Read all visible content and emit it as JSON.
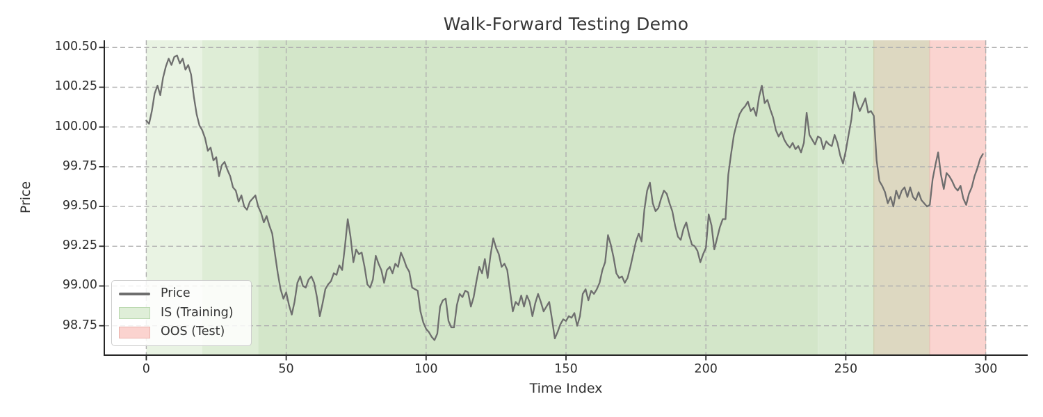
{
  "figure": {
    "title": "Walk-Forward Testing Demo",
    "xlabel": "Time Index",
    "ylabel": "Price"
  },
  "legend": {
    "items": [
      {
        "label": "Price",
        "swatch": "line",
        "color": "#6e6e6e"
      },
      {
        "label": "IS (Training)",
        "swatch": "fill",
        "color": "#dfeed8",
        "border": "#b9d8ae"
      },
      {
        "label": "OOS (Test)",
        "swatch": "fill",
        "color": "#fbd3cf",
        "border": "#eab3ad"
      }
    ]
  },
  "chart_data": {
    "type": "line",
    "title": "Walk-Forward Testing Demo",
    "xlabel": "Time Index",
    "ylabel": "Price",
    "xlim": [
      -15,
      315
    ],
    "ylim": [
      98.565,
      100.545
    ],
    "x_ticks": [
      0,
      50,
      100,
      150,
      200,
      250,
      300
    ],
    "y_ticks": [
      100.5,
      100.25,
      100.0,
      99.75,
      99.5,
      99.25,
      99.0,
      98.75
    ],
    "grid": true,
    "grid_style": "dashed",
    "legend_position": "lower left",
    "colors": {
      "line": "#6e6e6e",
      "grid": "#b0b0b0",
      "spine": "#262626",
      "text": "#2e2e2e"
    },
    "regions": [
      {
        "name": "is-training-1x",
        "x0": 0,
        "x1": 20,
        "color": "#e9f3e3"
      },
      {
        "name": "is-training-2x",
        "x0": 20,
        "x1": 40,
        "color": "#deedd6"
      },
      {
        "name": "is-training-3x",
        "x0": 40,
        "x1": 240,
        "color": "#d3e6c9"
      },
      {
        "name": "is-training-2x-tail",
        "x0": 240,
        "x1": 260,
        "color": "#d9ead1"
      },
      {
        "name": "is-oos-overlap",
        "x0": 260,
        "x1": 280,
        "color": "#ddd8c1",
        "edge_left": "#c2bd95"
      },
      {
        "name": "oos-test",
        "x0": 280,
        "x1": 300,
        "color": "#fad4d0",
        "edge_left": "#e8a9a3",
        "edge_right": "#e8a9a3"
      }
    ],
    "series": [
      {
        "name": "Price",
        "color": "#6e6e6e",
        "x_start": 0,
        "x_step": 1,
        "values": [
          100.04,
          100.02,
          100.1,
          100.21,
          100.26,
          100.2,
          100.31,
          100.38,
          100.43,
          100.39,
          100.44,
          100.45,
          100.4,
          100.43,
          100.36,
          100.39,
          100.33,
          100.19,
          100.08,
          100.01,
          99.98,
          99.93,
          99.85,
          99.87,
          99.79,
          99.81,
          99.69,
          99.76,
          99.78,
          99.73,
          99.69,
          99.62,
          99.6,
          99.53,
          99.57,
          99.5,
          99.48,
          99.53,
          99.55,
          99.57,
          99.5,
          99.46,
          99.4,
          99.44,
          99.38,
          99.33,
          99.2,
          99.08,
          98.98,
          98.92,
          98.96,
          98.88,
          98.82,
          98.9,
          99.02,
          99.06,
          99.0,
          98.99,
          99.04,
          99.06,
          99.02,
          98.93,
          98.81,
          98.89,
          98.98,
          99.01,
          99.03,
          99.08,
          99.07,
          99.13,
          99.1,
          99.25,
          99.42,
          99.31,
          99.15,
          99.23,
          99.2,
          99.21,
          99.12,
          99.01,
          98.99,
          99.04,
          99.19,
          99.14,
          99.1,
          99.02,
          99.1,
          99.12,
          99.08,
          99.14,
          99.12,
          99.21,
          99.17,
          99.12,
          99.09,
          98.99,
          98.98,
          98.97,
          98.84,
          98.77,
          98.73,
          98.71,
          98.68,
          98.66,
          98.7,
          98.87,
          98.91,
          98.92,
          98.78,
          98.74,
          98.74,
          98.88,
          98.95,
          98.93,
          98.97,
          98.96,
          98.87,
          98.93,
          99.03,
          99.12,
          99.08,
          99.17,
          99.05,
          99.19,
          99.3,
          99.24,
          99.2,
          99.12,
          99.14,
          99.1,
          98.97,
          98.84,
          98.9,
          98.88,
          98.94,
          98.87,
          98.94,
          98.9,
          98.81,
          98.89,
          98.95,
          98.9,
          98.84,
          98.87,
          98.9,
          98.79,
          98.67,
          98.71,
          98.76,
          98.79,
          98.78,
          98.81,
          98.8,
          98.83,
          98.75,
          98.81,
          98.95,
          98.98,
          98.91,
          98.97,
          98.95,
          98.98,
          99.02,
          99.1,
          99.15,
          99.32,
          99.26,
          99.18,
          99.08,
          99.05,
          99.06,
          99.02,
          99.05,
          99.12,
          99.2,
          99.28,
          99.33,
          99.28,
          99.48,
          99.6,
          99.65,
          99.52,
          99.47,
          99.49,
          99.55,
          99.6,
          99.58,
          99.52,
          99.47,
          99.38,
          99.31,
          99.29,
          99.36,
          99.4,
          99.32,
          99.26,
          99.25,
          99.22,
          99.15,
          99.2,
          99.24,
          99.45,
          99.38,
          99.23,
          99.3,
          99.37,
          99.42,
          99.42,
          99.7,
          99.83,
          99.95,
          100.02,
          100.08,
          100.11,
          100.13,
          100.16,
          100.1,
          100.12,
          100.07,
          100.19,
          100.26,
          100.15,
          100.17,
          100.11,
          100.06,
          99.98,
          99.94,
          99.97,
          99.92,
          99.89,
          99.87,
          99.9,
          99.86,
          99.88,
          99.84,
          99.9,
          100.09,
          99.95,
          99.92,
          99.89,
          99.94,
          99.93,
          99.86,
          99.91,
          99.89,
          99.88,
          99.95,
          99.9,
          99.82,
          99.77,
          99.85,
          99.95,
          100.05,
          100.22,
          100.15,
          100.1,
          100.14,
          100.18,
          100.09,
          100.1,
          100.07,
          99.79,
          99.66,
          99.63,
          99.59,
          99.52,
          99.56,
          99.5,
          99.6,
          99.55,
          99.6,
          99.62,
          99.56,
          99.62,
          99.56,
          99.54,
          99.59,
          99.54,
          99.52,
          99.5,
          99.51,
          99.67,
          99.76,
          99.84,
          99.7,
          99.61,
          99.71,
          99.69,
          99.66,
          99.62,
          99.6,
          99.63,
          99.55,
          99.51,
          99.58,
          99.62,
          99.69,
          99.74,
          99.8,
          99.83
        ]
      }
    ]
  }
}
